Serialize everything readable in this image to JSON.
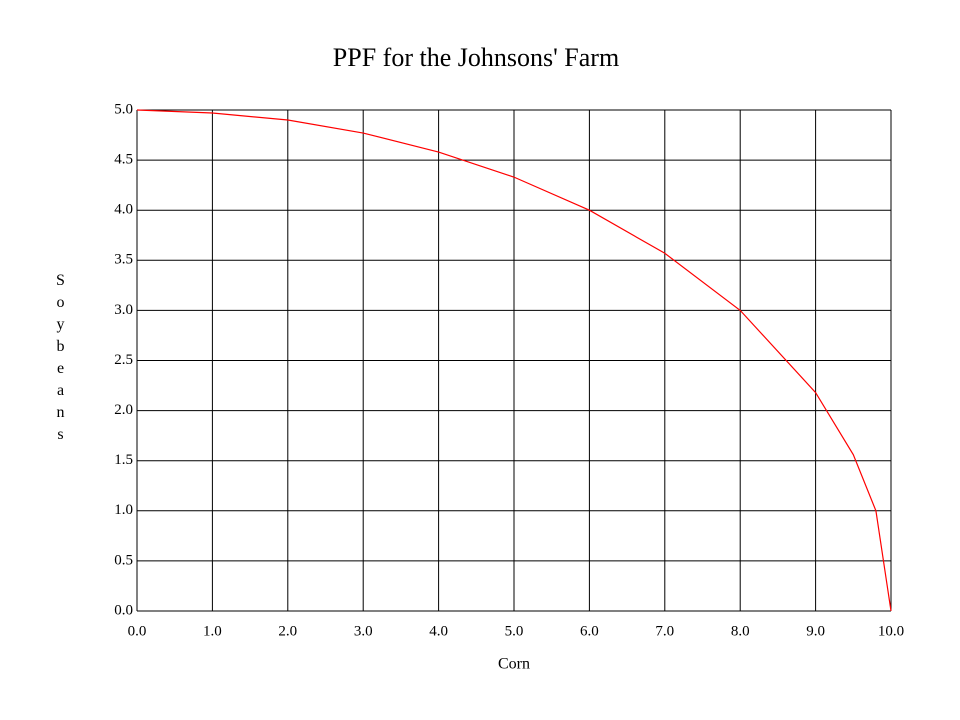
{
  "chart_data": {
    "type": "line",
    "title": "PPF for the Johnsons' Farm",
    "x_label": "Corn",
    "y_label": "Soybeans",
    "x": [
      0,
      1,
      2,
      3,
      4,
      5,
      6,
      7,
      8,
      9,
      9.5,
      9.8,
      10
    ],
    "values": [
      5.0,
      4.97,
      4.9,
      4.77,
      4.58,
      4.33,
      4.0,
      3.57,
      3.0,
      2.18,
      1.56,
      1.0,
      0
    ],
    "color": "#ff0000",
    "xlim": [
      0,
      10
    ],
    "xticks": [
      {
        "value": 0,
        "label": "0.0"
      },
      {
        "value": 1,
        "label": "1.0"
      },
      {
        "value": 2,
        "label": "2.0"
      },
      {
        "value": 3,
        "label": "3.0"
      },
      {
        "value": 4,
        "label": "4.0"
      },
      {
        "value": 5,
        "label": "5.0"
      },
      {
        "value": 6,
        "label": "6.0"
      },
      {
        "value": 7,
        "label": "7.0"
      },
      {
        "value": 8,
        "label": "8.0"
      },
      {
        "value": 9,
        "label": "9.0"
      },
      {
        "value": 10,
        "label": "10.0"
      }
    ],
    "ylim": [
      0,
      5
    ],
    "yticks": [
      {
        "value": 0,
        "label": "0.0"
      },
      {
        "value": 0.5,
        "label": "0.5"
      },
      {
        "value": 1,
        "label": "1.0"
      },
      {
        "value": 1.5,
        "label": "1.5"
      },
      {
        "value": 2,
        "label": "2.0"
      },
      {
        "value": 2.5,
        "label": "2.5"
      },
      {
        "value": 3,
        "label": "3.0"
      },
      {
        "value": 3.5,
        "label": "3.5"
      },
      {
        "value": 4,
        "label": "4.0"
      },
      {
        "value": 4.5,
        "label": "4.5"
      },
      {
        "value": 5,
        "label": "5.0"
      }
    ],
    "grid": true
  }
}
